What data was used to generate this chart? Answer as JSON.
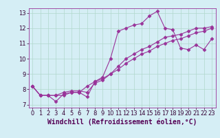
{
  "xlabel": "Windchill (Refroidissement éolien,°C)",
  "bg_color": "#d5eef5",
  "grid_color": "#b0d8cc",
  "line_color": "#993399",
  "xlim": [
    -0.5,
    23.5
  ],
  "ylim": [
    6.8,
    13.3
  ],
  "xticks": [
    0,
    1,
    2,
    3,
    4,
    5,
    6,
    7,
    8,
    9,
    10,
    11,
    12,
    13,
    14,
    15,
    16,
    17,
    18,
    19,
    20,
    21,
    22,
    23
  ],
  "yticks": [
    7,
    8,
    9,
    10,
    11,
    12,
    13
  ],
  "line1_x": [
    0,
    1,
    2,
    3,
    4,
    5,
    6,
    7,
    8,
    9,
    10,
    11,
    12,
    13,
    14,
    15,
    16,
    17,
    18,
    19,
    20,
    21,
    22,
    23
  ],
  "line1_y": [
    8.2,
    7.6,
    7.6,
    7.2,
    7.7,
    7.8,
    7.8,
    7.5,
    8.5,
    8.8,
    10.0,
    11.8,
    12.0,
    12.2,
    12.3,
    12.8,
    13.1,
    12.0,
    11.9,
    10.7,
    10.6,
    10.9,
    10.6,
    11.3
  ],
  "line2_x": [
    0,
    1,
    2,
    3,
    4,
    5,
    6,
    7,
    8,
    9,
    10,
    11,
    12,
    13,
    14,
    15,
    16,
    17,
    18,
    19,
    20,
    21,
    22,
    23
  ],
  "line2_y": [
    8.2,
    7.6,
    7.6,
    7.6,
    7.6,
    7.8,
    7.8,
    8.2,
    8.5,
    8.7,
    9.0,
    9.5,
    10.0,
    10.3,
    10.6,
    10.8,
    11.1,
    11.4,
    11.5,
    11.6,
    11.8,
    12.0,
    12.0,
    12.1
  ],
  "line3_x": [
    0,
    1,
    2,
    3,
    4,
    5,
    6,
    7,
    8,
    9,
    10,
    11,
    12,
    13,
    14,
    15,
    16,
    17,
    18,
    19,
    20,
    21,
    22,
    23
  ],
  "line3_y": [
    8.2,
    7.6,
    7.6,
    7.6,
    7.8,
    7.9,
    7.9,
    7.8,
    8.4,
    8.6,
    9.0,
    9.3,
    9.7,
    10.0,
    10.3,
    10.5,
    10.8,
    11.0,
    11.2,
    11.3,
    11.5,
    11.7,
    11.8,
    12.0
  ],
  "marker": "D",
  "markersize": 2.5,
  "linewidth": 0.8,
  "xlabel_fontsize": 7,
  "tick_fontsize": 6
}
